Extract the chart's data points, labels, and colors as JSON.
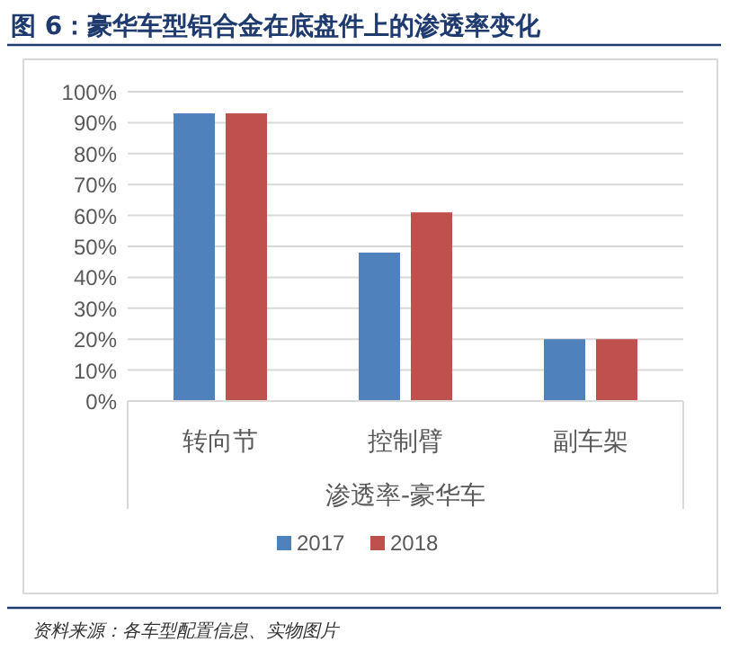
{
  "chart_data": {
    "type": "bar",
    "title": "图 6：豪华车型铝合金在底盘件上的渗透率变化",
    "xlabel": "渗透率-豪华车",
    "categories": [
      "转向节",
      "控制臂",
      "副车架"
    ],
    "series": [
      {
        "name": "2017",
        "color": "#4f81bd",
        "values": [
          93,
          48,
          20
        ]
      },
      {
        "name": "2018",
        "color": "#c0504d",
        "values": [
          93,
          61,
          20
        ]
      }
    ],
    "ylim": [
      0,
      100
    ],
    "yticks": [
      {
        "value": 0,
        "label": "0%"
      },
      {
        "value": 10,
        "label": "10%"
      },
      {
        "value": 20,
        "label": "20%"
      },
      {
        "value": 30,
        "label": "30%"
      },
      {
        "value": 40,
        "label": "40%"
      },
      {
        "value": 50,
        "label": "50%"
      },
      {
        "value": 60,
        "label": "60%"
      },
      {
        "value": 70,
        "label": "70%"
      },
      {
        "value": 80,
        "label": "80%"
      },
      {
        "value": 90,
        "label": "90%"
      },
      {
        "value": 100,
        "label": "100%"
      }
    ],
    "grid": "y",
    "legend": "bottom",
    "annotations": [
      "资料来源：各车型配置信息、实物图片"
    ]
  }
}
